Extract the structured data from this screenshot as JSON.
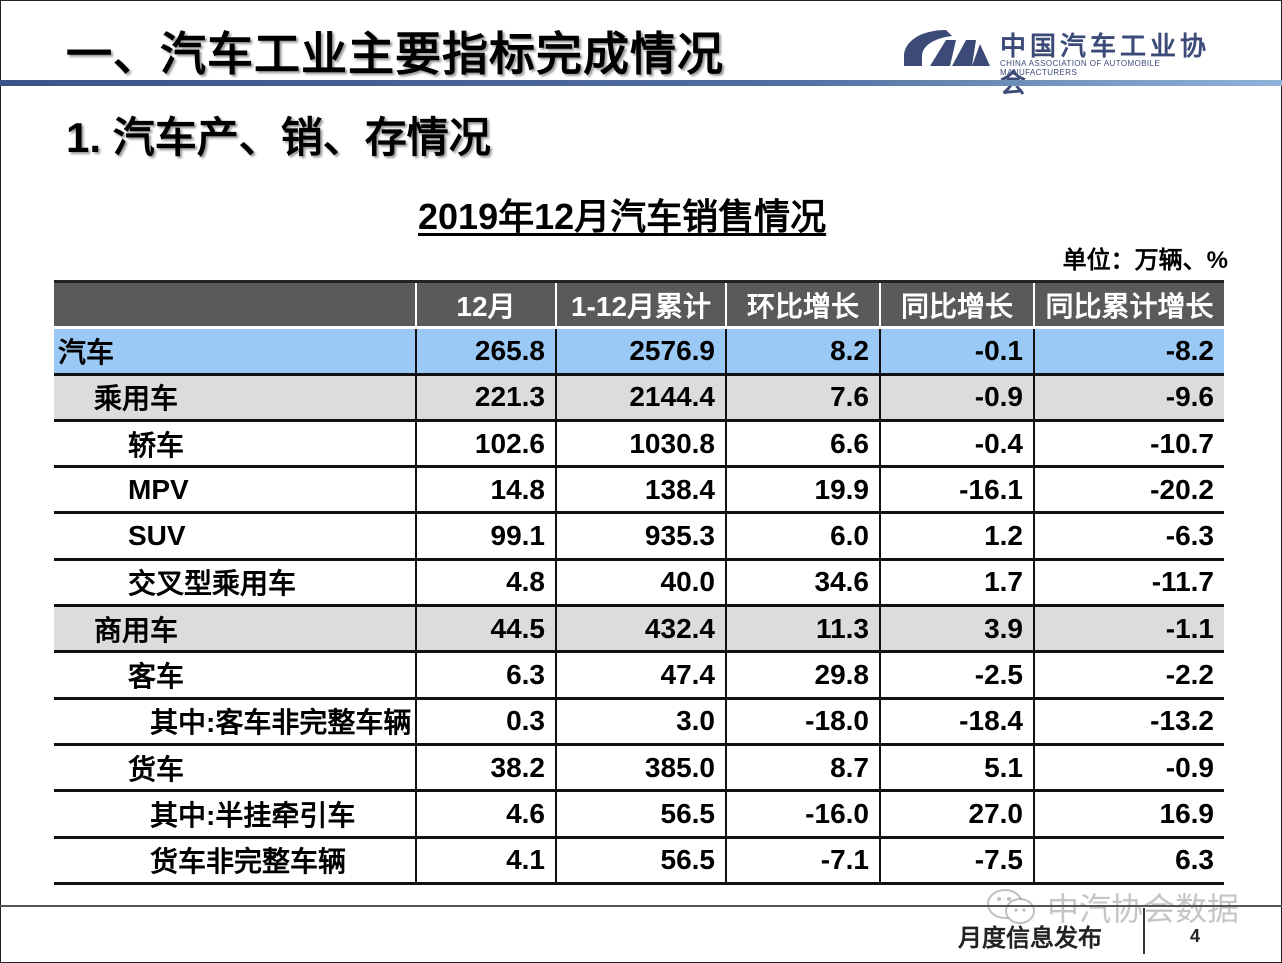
{
  "header": {
    "title": "一、汽车工业主要指标完成情况",
    "logo": {
      "name_cn": "中国汽车工业协会",
      "name_en": "CHINA ASSOCIATION OF AUTOMOBILE MANUFACTURERS",
      "icon": "caam-logo-icon"
    },
    "accent_color": "#3a5586"
  },
  "section": {
    "title": "1. 汽车产、销、存情况"
  },
  "table": {
    "title": "2019年12月汽车销售情况",
    "unit": "单位：万辆、%",
    "columns": [
      "",
      "12月",
      "1-12月累计",
      "环比增长",
      "同比增长",
      "同比累计增长"
    ],
    "rows": [
      {
        "label": "汽车",
        "level": 0,
        "values": [
          "265.8",
          "2576.9",
          "8.2",
          "-0.1",
          "-8.2"
        ]
      },
      {
        "label": "乘用车",
        "level": 1,
        "values": [
          "221.3",
          "2144.4",
          "7.6",
          "-0.9",
          "-9.6"
        ]
      },
      {
        "label": "轿车",
        "level": 2,
        "values": [
          "102.6",
          "1030.8",
          "6.6",
          "-0.4",
          "-10.7"
        ]
      },
      {
        "label": "MPV",
        "level": 2,
        "values": [
          "14.8",
          "138.4",
          "19.9",
          "-16.1",
          "-20.2"
        ]
      },
      {
        "label": "SUV",
        "level": 2,
        "values": [
          "99.1",
          "935.3",
          "6.0",
          "1.2",
          "-6.3"
        ]
      },
      {
        "label": "交叉型乘用车",
        "level": 2,
        "values": [
          "4.8",
          "40.0",
          "34.6",
          "1.7",
          "-11.7"
        ]
      },
      {
        "label": "商用车",
        "level": 1,
        "values": [
          "44.5",
          "432.4",
          "11.3",
          "3.9",
          "-1.1"
        ]
      },
      {
        "label": "客车",
        "level": 2,
        "values": [
          "6.3",
          "47.4",
          "29.8",
          "-2.5",
          "-2.2"
        ]
      },
      {
        "label": "其中:客车非完整车辆",
        "level": 3,
        "values": [
          "0.3",
          "3.0",
          "-18.0",
          "-18.4",
          "-13.2"
        ]
      },
      {
        "label": "货车",
        "level": 2,
        "values": [
          "38.2",
          "385.0",
          "8.7",
          "5.1",
          "-0.9"
        ]
      },
      {
        "label": "其中:半挂牵引车",
        "level": 3,
        "values": [
          "4.6",
          "56.5",
          "-16.0",
          "27.0",
          "16.9"
        ]
      },
      {
        "label": "货车非完整车辆",
        "level": 3,
        "values": [
          "4.1",
          "56.5",
          "-7.1",
          "-7.5",
          "6.3"
        ]
      }
    ],
    "colors": {
      "header_bg": "#5a595b",
      "total_row_bg": "#9bc9f5",
      "category_row_bg": "#dcdcdc"
    }
  },
  "footer": {
    "label": "月度信息发布",
    "page_number": "4",
    "watermark": "中汽协会数据",
    "watermark_icon": "wechat-icon"
  }
}
